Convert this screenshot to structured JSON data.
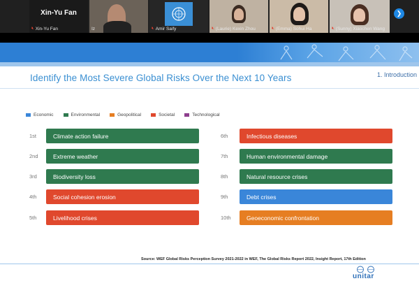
{
  "participants": [
    {
      "display_name": "Xin-Yu Fan",
      "label": "Xin-Yu Fan"
    },
    {
      "label": "Iz"
    },
    {
      "label": "Amir Saify"
    },
    {
      "label": "(Laurie) Kexin Zhou"
    },
    {
      "label": "(Emma) Sohui Ha"
    },
    {
      "label": "(Sunny) Xiaochen Wang"
    }
  ],
  "slide": {
    "title": "Identify the Most Severe Global Risks Over the Next 10 Years",
    "section": "1. Introduction",
    "legend": [
      {
        "label": "Economic",
        "color": "#3a86d9"
      },
      {
        "label": "Environmental",
        "color": "#2f7a4f"
      },
      {
        "label": "Geopolitical",
        "color": "#e67e22"
      },
      {
        "label": "Societal",
        "color": "#e0482d"
      },
      {
        "label": "Technological",
        "color": "#8e3f8e"
      }
    ],
    "risks_left": [
      {
        "rank": "1st",
        "label": "Climate action failure",
        "color": "#2f7a4f"
      },
      {
        "rank": "2nd",
        "label": "Extreme weather",
        "color": "#2f7a4f"
      },
      {
        "rank": "3rd",
        "label": "Biodiversity loss",
        "color": "#2f7a4f"
      },
      {
        "rank": "4th",
        "label": "Social cohesion erosion",
        "color": "#e0482d"
      },
      {
        "rank": "5th",
        "label": "Livelihood crises",
        "color": "#e0482d"
      }
    ],
    "risks_right": [
      {
        "rank": "6th",
        "label": "Infectious diseases",
        "color": "#e0482d"
      },
      {
        "rank": "7th",
        "label": "Human environmental damage",
        "color": "#2f7a4f"
      },
      {
        "rank": "8th",
        "label": "Natural resource crises",
        "color": "#2f7a4f"
      },
      {
        "rank": "9th",
        "label": "Debt crises",
        "color": "#3a86d9"
      },
      {
        "rank": "10th",
        "label": "Geoeconomic confrontation",
        "color": "#e67e22"
      }
    ],
    "source": "Source: WEF Global Risks Perception Survey 2021-2022  in  WEF, The Global Risks Report 2022,  Insight Report, 17th Edition",
    "logo_text": "unitar"
  },
  "icons": {
    "next": "chevron-right-icon",
    "mic": "mic-muted-icon"
  }
}
